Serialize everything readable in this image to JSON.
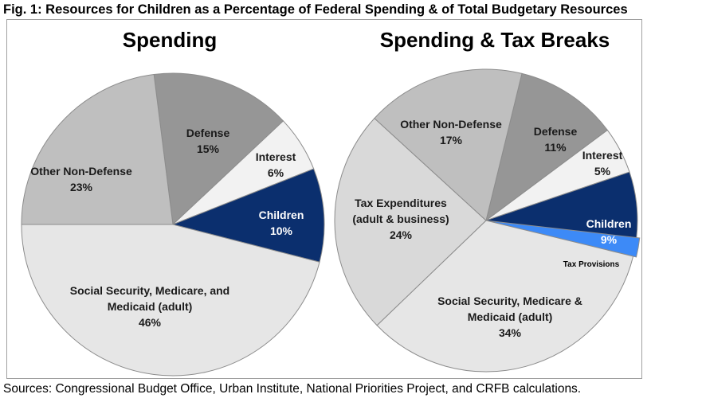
{
  "title": "Fig. 1: Resources for Children as a Percentage of Federal Spending & of Total Budgetary Resources",
  "source": "Sources: Congressional Budget Office, Urban Institute, National Priorities Project, and CRFB calculations.",
  "chart_data": [
    {
      "type": "pie",
      "title": "Spending",
      "slices": [
        {
          "name": "Defense",
          "value": 15,
          "value_label": "15%",
          "color": "#969696"
        },
        {
          "name": "Interest",
          "value": 6,
          "value_label": "6%",
          "color": "#f2f2f2"
        },
        {
          "name": "Children",
          "value": 10,
          "value_label": "10%",
          "color": "#0b2f6e"
        },
        {
          "name": "Social Security, Medicare, and Medicaid (adult)",
          "value": 46,
          "value_label": "46%",
          "color": "#e6e6e6"
        },
        {
          "name": "Other Non-Defense",
          "value": 23,
          "value_label": "23%",
          "color": "#bfbfbf"
        }
      ]
    },
    {
      "type": "pie",
      "title": "Spending & Tax Breaks",
      "slices": [
        {
          "name": "Defense",
          "value": 11,
          "value_label": "11%",
          "color": "#969696"
        },
        {
          "name": "Interest",
          "value": 5,
          "value_label": "5%",
          "color": "#f2f2f2"
        },
        {
          "name": "Children",
          "value": 9,
          "value_label": "9%",
          "color": "#0b2f6e",
          "parts": [
            {
              "name": "Tax Provisions",
              "value": 2,
              "color": "#3d8af7"
            }
          ]
        },
        {
          "name": "Social Security, Medicare & Medicaid (adult)",
          "value": 34,
          "value_label": "34%",
          "color": "#e6e6e6"
        },
        {
          "name": "Tax Expenditures (adult & business)",
          "value": 24,
          "value_label": "24%",
          "color": "#d9d9d9"
        },
        {
          "name": "Other Non-Defense",
          "value": 17,
          "value_label": "17%",
          "color": "#bfbfbf"
        }
      ]
    }
  ]
}
